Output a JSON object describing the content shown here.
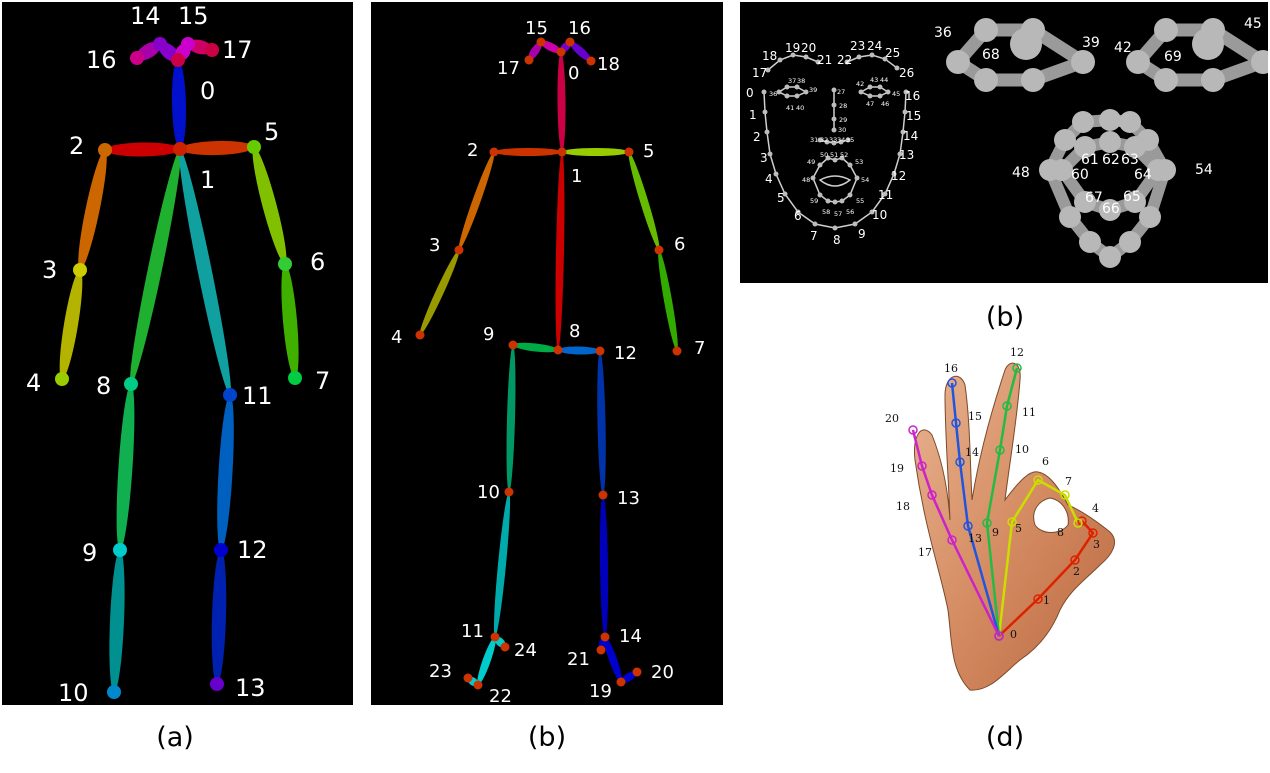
{
  "captions": {
    "a": "(a)",
    "b1": "(b)",
    "b2": "(b)",
    "d": "(d)"
  },
  "body18": {
    "nodes": [
      "0",
      "1",
      "2",
      "3",
      "4",
      "5",
      "6",
      "7",
      "8",
      "9",
      "10",
      "11",
      "12",
      "13",
      "14",
      "15",
      "16",
      "17"
    ]
  },
  "body25": {
    "nodes": [
      "0",
      "1",
      "2",
      "3",
      "4",
      "5",
      "6",
      "7",
      "8",
      "9",
      "10",
      "11",
      "12",
      "13",
      "14",
      "15",
      "16",
      "17",
      "18",
      "19",
      "20",
      "21",
      "22",
      "23",
      "24"
    ]
  },
  "face": {
    "labels": [
      "0",
      "1",
      "2",
      "3",
      "4",
      "5",
      "6",
      "7",
      "8",
      "9",
      "10",
      "11",
      "12",
      "13",
      "14",
      "15",
      "16",
      "17",
      "18",
      "19",
      "20",
      "21",
      "22",
      "23",
      "24",
      "25",
      "26",
      "27",
      "28",
      "29",
      "30",
      "31",
      "32",
      "33",
      "34",
      "35",
      "36",
      "37",
      "38",
      "39",
      "40",
      "41",
      "42",
      "43",
      "44",
      "45",
      "46",
      "47",
      "48",
      "49",
      "50",
      "51",
      "52",
      "53",
      "54",
      "55",
      "56",
      "57",
      "58",
      "59"
    ],
    "eye_left": {
      "a": "36",
      "b": "68",
      "c": "39"
    },
    "eye_right": {
      "a": "42",
      "b": "69",
      "c": "45"
    },
    "mouth": {
      "l": "48",
      "r": "54",
      "i1": "61",
      "i2": "62",
      "i3": "63",
      "i4": "60",
      "i5": "64",
      "i6": "67",
      "i7": "66",
      "i8": "65"
    }
  },
  "hand": {
    "nodes": [
      "0",
      "1",
      "2",
      "3",
      "4",
      "5",
      "6",
      "7",
      "8",
      "9",
      "10",
      "11",
      "12",
      "13",
      "14",
      "15",
      "16",
      "17",
      "18",
      "19",
      "20"
    ]
  }
}
